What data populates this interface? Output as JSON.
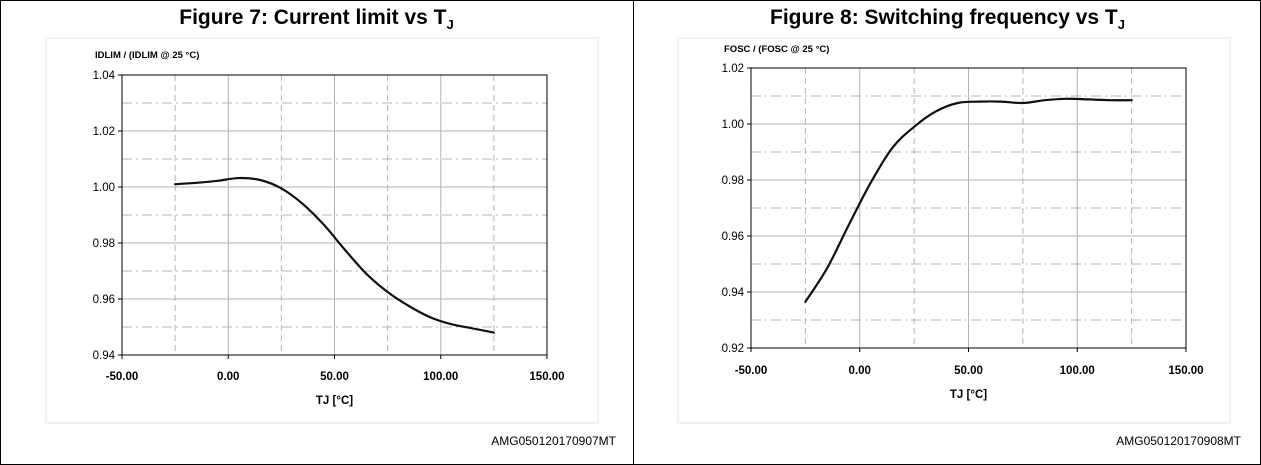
{
  "figures": [
    {
      "title": "Figure 7: Current limit vs T",
      "title_sub": "J",
      "code": "AMG050120170907MT",
      "chart_data": {
        "type": "line",
        "ylabel": "IDLIM / (IDLIM @ 25 °C)",
        "xlabel": "TJ [°C]",
        "xlim": [
          -50,
          150
        ],
        "ylim": [
          0.94,
          1.04
        ],
        "x_ticks": [
          -50,
          0,
          50,
          100,
          150
        ],
        "x_tick_labels": [
          "-50.00",
          "0.00",
          "50.00",
          "100.00",
          "150.00"
        ],
        "y_ticks": [
          0.94,
          0.96,
          0.98,
          1.0,
          1.02,
          1.04
        ],
        "y_tick_labels": [
          "0.94",
          "0.96",
          "0.98",
          "1.00",
          "1.02",
          "1.04"
        ],
        "grid": true,
        "series": [
          {
            "x": [
              -25,
              -15,
              -5,
              5,
              15,
              25,
              35,
              45,
              55,
              65,
              75,
              85,
              95,
              105,
              115,
              125
            ],
            "y": [
              1.001,
              1.0015,
              1.0022,
              1.0032,
              1.0025,
              0.9995,
              0.994,
              0.9865,
              0.9775,
              0.969,
              0.9625,
              0.9575,
              0.9535,
              0.951,
              0.9495,
              0.948
            ]
          }
        ]
      }
    },
    {
      "title": "Figure 8: Switching frequency vs T",
      "title_sub": "J",
      "code": "AMG050120170908MT",
      "chart_data": {
        "type": "line",
        "ylabel": "FOSC / (FOSC @ 25 °C)",
        "xlabel": "TJ [°C]",
        "xlim": [
          -50,
          150
        ],
        "ylim": [
          0.92,
          1.02
        ],
        "x_ticks": [
          -50,
          0,
          50,
          100,
          150
        ],
        "x_tick_labels": [
          "-50.00",
          "0.00",
          "50.00",
          "100.00",
          "150.00"
        ],
        "y_ticks": [
          0.92,
          0.94,
          0.96,
          0.98,
          1.0,
          1.02
        ],
        "y_tick_labels": [
          "0.92",
          "0.94",
          "0.96",
          "0.98",
          "1.00",
          "1.02"
        ],
        "grid": true,
        "series": [
          {
            "x": [
              -25,
              -15,
              -5,
              5,
              15,
              25,
              35,
              45,
              55,
              65,
              75,
              85,
              95,
              105,
              115,
              125
            ],
            "y": [
              0.9365,
              0.9485,
              0.964,
              0.979,
              0.9915,
              0.999,
              1.0045,
              1.0075,
              1.008,
              1.008,
              1.0075,
              1.0085,
              1.009,
              1.0088,
              1.0085,
              1.0085
            ]
          }
        ]
      }
    }
  ]
}
